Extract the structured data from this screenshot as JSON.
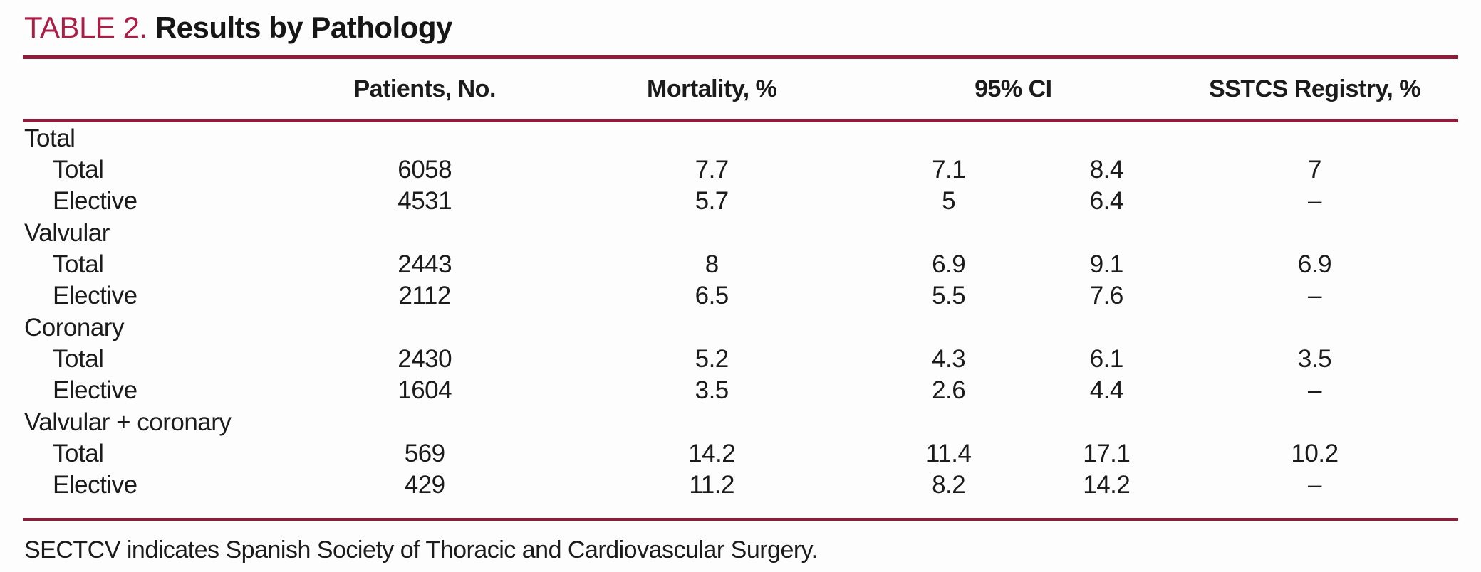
{
  "table": {
    "label": "TABLE 2.",
    "title": "Results by Pathology",
    "columns": {
      "row_header": "",
      "patients": "Patients, No.",
      "mortality": "Mortality, %",
      "ci": "95% CI",
      "registry": "SSTCS Registry, %"
    },
    "groups": [
      {
        "name": "Total",
        "rows": [
          {
            "label": "Total",
            "patients": "6058",
            "mortality": "7.7",
            "ci_low": "7.1",
            "ci_high": "8.4",
            "registry": "7"
          },
          {
            "label": "Elective",
            "patients": "4531",
            "mortality": "5.7",
            "ci_low": "5",
            "ci_high": "6.4",
            "registry": "–"
          }
        ]
      },
      {
        "name": "Valvular",
        "rows": [
          {
            "label": "Total",
            "patients": "2443",
            "mortality": "8",
            "ci_low": "6.9",
            "ci_high": "9.1",
            "registry": "6.9"
          },
          {
            "label": "Elective",
            "patients": "2112",
            "mortality": "6.5",
            "ci_low": "5.5",
            "ci_high": "7.6",
            "registry": "–"
          }
        ]
      },
      {
        "name": "Coronary",
        "rows": [
          {
            "label": "Total",
            "patients": "2430",
            "mortality": "5.2",
            "ci_low": "4.3",
            "ci_high": "6.1",
            "registry": "3.5"
          },
          {
            "label": "Elective",
            "patients": "1604",
            "mortality": "3.5",
            "ci_low": "2.6",
            "ci_high": "4.4",
            "registry": "–"
          }
        ]
      },
      {
        "name": "Valvular + coronary",
        "rows": [
          {
            "label": "Total",
            "patients": "569",
            "mortality": "14.2",
            "ci_low": "11.4",
            "ci_high": "17.1",
            "registry": "10.2"
          },
          {
            "label": "Elective",
            "patients": "429",
            "mortality": "11.2",
            "ci_low": "8.2",
            "ci_high": "14.2",
            "registry": "–"
          }
        ]
      }
    ],
    "footnote": "SECTCV indicates Spanish Society of Thoracic and Cardiovascular Surgery.",
    "colors": {
      "accent_title": "#AB1D45",
      "rule": "#8E1C3B",
      "text": "#1B1B1B"
    }
  }
}
